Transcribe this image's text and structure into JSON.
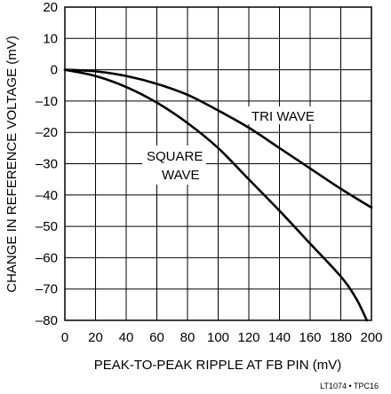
{
  "chart_data": {
    "type": "line",
    "xlabel": "PEAK-TO-PEAK RIPPLE AT FB PIN (mV)",
    "ylabel": "CHANGE IN REFERENCE VOLTAGE (mV)",
    "xlim": [
      0,
      200
    ],
    "ylim": [
      -80,
      20
    ],
    "x_ticks": [
      0,
      20,
      40,
      60,
      80,
      100,
      120,
      140,
      160,
      180,
      200
    ],
    "y_ticks": [
      20,
      10,
      0,
      -10,
      -20,
      -30,
      -40,
      -50,
      -60,
      -70,
      -80
    ],
    "x_tick_labels": [
      "0",
      "20",
      "40",
      "60",
      "80",
      "100",
      "120",
      "140",
      "160",
      "180",
      "200"
    ],
    "y_tick_labels": [
      "20",
      "10",
      "0",
      "–10",
      "–20",
      "–30",
      "–40",
      "–50",
      "–60",
      "–70",
      "–80"
    ],
    "grid": true,
    "series": [
      {
        "name": "TRI WAVE",
        "color": "#000000",
        "x": [
          0,
          20,
          40,
          60,
          80,
          100,
          120,
          140,
          160,
          180,
          200
        ],
        "y": [
          0,
          -0.5,
          -2,
          -4.5,
          -8,
          -13,
          -18.5,
          -25,
          -31.5,
          -38,
          -44
        ]
      },
      {
        "name": "SQUARE WAVE",
        "color": "#000000",
        "x": [
          0,
          20,
          40,
          60,
          80,
          100,
          120,
          140,
          160,
          180,
          190,
          197
        ],
        "y": [
          0,
          -2,
          -5.5,
          -10.5,
          -17,
          -25,
          -35,
          -45,
          -55.5,
          -66,
          -73,
          -80
        ]
      }
    ],
    "series_labels": [
      {
        "lines": [
          "TRI WAVE"
        ]
      },
      {
        "lines": [
          "SQUARE",
          "WAVE"
        ]
      }
    ],
    "figure_id": "LT1074 • TPC16"
  }
}
